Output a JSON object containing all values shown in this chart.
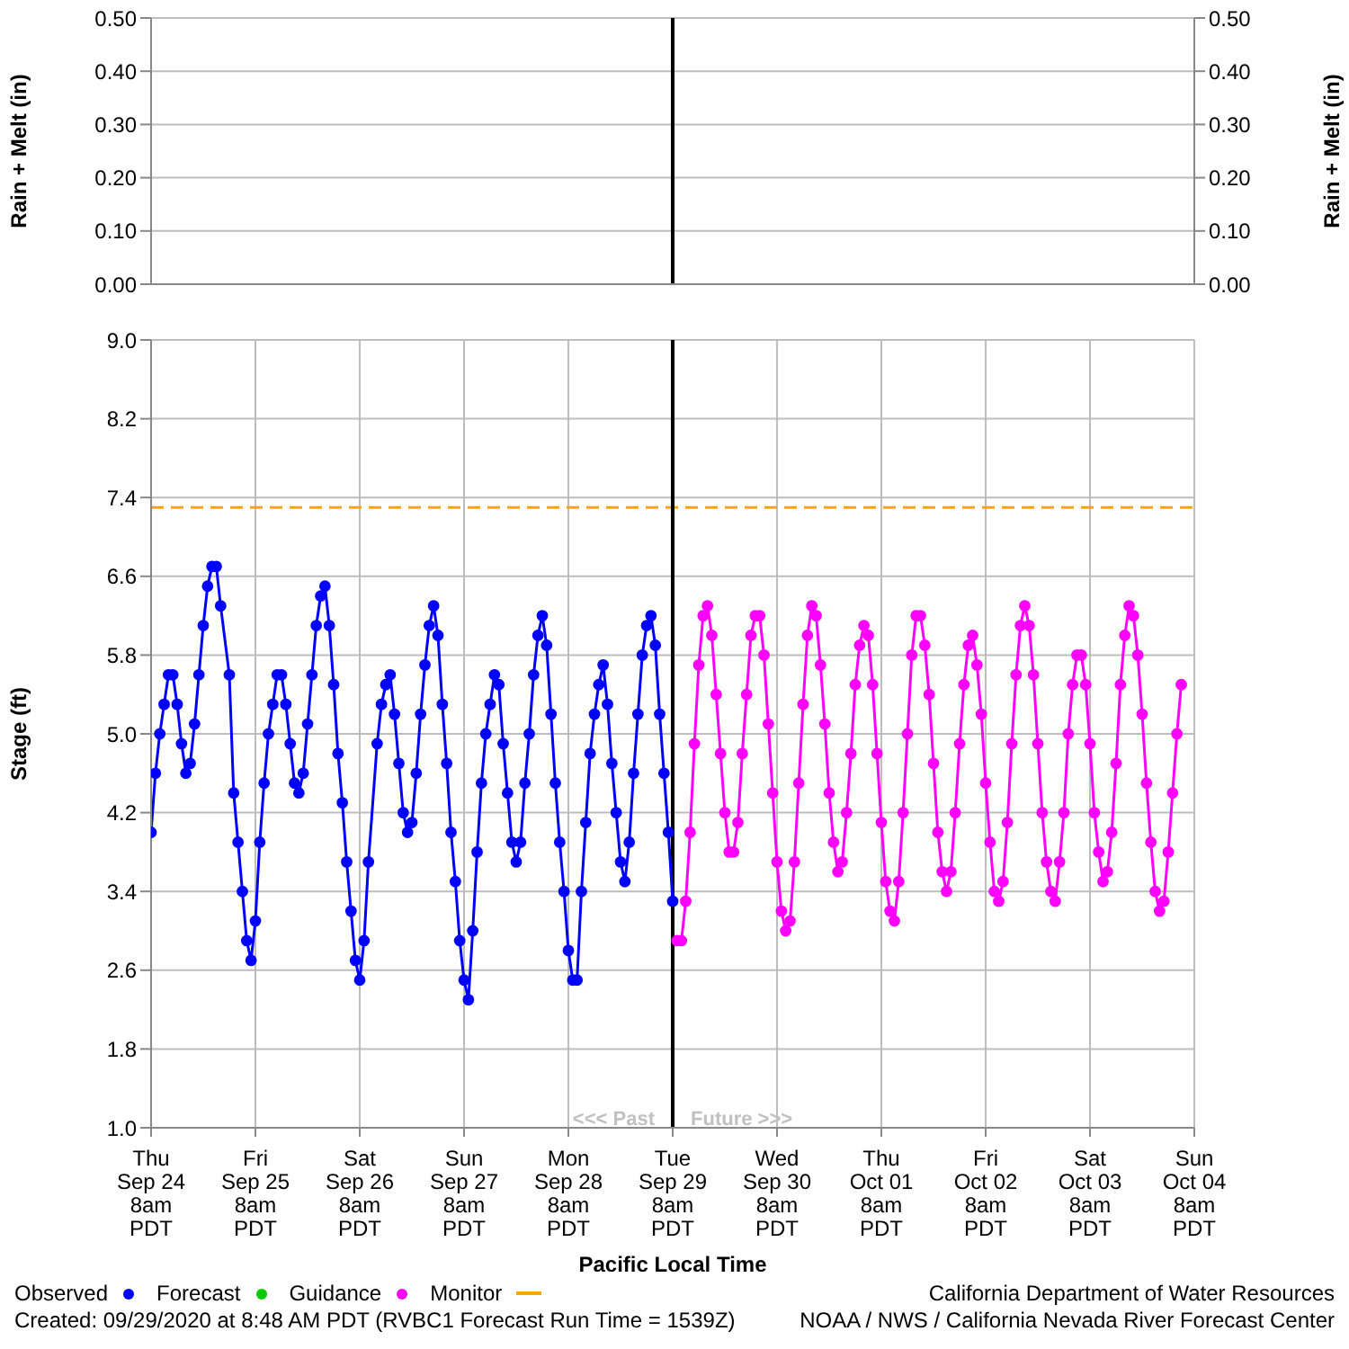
{
  "chart_data": [
    {
      "type": "bar",
      "ylabel": "Rain + Melt (in)",
      "y2label": "Rain + Melt (in)",
      "xlim": [
        "2020-09-24T08:00",
        "2020-10-04T08:00"
      ],
      "xticks": [
        "2020-09-24T08:00",
        "2020-09-25T08:00",
        "2020-09-26T08:00",
        "2020-09-27T08:00",
        "2020-09-28T08:00",
        "2020-09-29T08:00",
        "2020-09-30T08:00",
        "2020-10-01T08:00",
        "2020-10-02T08:00",
        "2020-10-03T08:00",
        "2020-10-04T08:00"
      ],
      "ylim": [
        0,
        0.5
      ],
      "yticks": [
        {
          "value": 0,
          "label": "0.00"
        },
        {
          "value": 0.1,
          "label": "0.10"
        },
        {
          "value": 0.2,
          "label": "0.20"
        },
        {
          "value": 0.3,
          "label": "0.30"
        },
        {
          "value": 0.4,
          "label": "0.40"
        },
        {
          "value": 0.5,
          "label": "0.50"
        }
      ],
      "y2lim": [
        0,
        0.5
      ],
      "y2ticks": [
        {
          "value": 0,
          "label": "0.00"
        },
        {
          "value": 0.1,
          "label": "0.10"
        },
        {
          "value": 0.2,
          "label": "0.20"
        },
        {
          "value": 0.3,
          "label": "0.30"
        },
        {
          "value": 0.4,
          "label": "0.40"
        },
        {
          "value": 0.5,
          "label": "0.50"
        }
      ],
      "ref_lines": [
        {
          "axis": "x",
          "value": "2020-09-29T08:00",
          "color": "#000000"
        }
      ],
      "grid": true,
      "tick_labels": "y"
    },
    {
      "type": "line",
      "ylabel": "Stage (ft)",
      "xlabel": "Pacific Local Time",
      "xlim": [
        "2020-09-24T08:00",
        "2020-10-04T08:00"
      ],
      "xticks": [
        {
          "value": "2020-09-24T08:00",
          "label": "Thu\nSep 24\n8am\nPDT"
        },
        {
          "value": "2020-09-25T08:00",
          "label": "Fri\nSep 25\n8am\nPDT"
        },
        {
          "value": "2020-09-26T08:00",
          "label": "Sat\nSep 26\n8am\nPDT"
        },
        {
          "value": "2020-09-27T08:00",
          "label": "Sun\nSep 27\n8am\nPDT"
        },
        {
          "value": "2020-09-28T08:00",
          "label": "Mon\nSep 28\n8am\nPDT"
        },
        {
          "value": "2020-09-29T08:00",
          "label": "Tue\nSep 29\n8am\nPDT"
        },
        {
          "value": "2020-09-30T08:00",
          "label": "Wed\nSep 30\n8am\nPDT"
        },
        {
          "value": "2020-10-01T08:00",
          "label": "Thu\nOct 01\n8am\nPDT"
        },
        {
          "value": "2020-10-02T08:00",
          "label": "Fri\nOct 02\n8am\nPDT"
        },
        {
          "value": "2020-10-03T08:00",
          "label": "Sat\nOct 03\n8am\nPDT"
        },
        {
          "value": "2020-10-04T08:00",
          "label": "Sun\nOct 04\n8am\nPDT"
        }
      ],
      "ylim": [
        1,
        9
      ],
      "yticks": [
        {
          "value": 1,
          "label": "1.0"
        },
        {
          "value": 1.8,
          "label": "1.8"
        },
        {
          "value": 2.6,
          "label": "2.6"
        },
        {
          "value": 3.4,
          "label": "3.4"
        },
        {
          "value": 4.2,
          "label": "4.2"
        },
        {
          "value": 5,
          "label": "5.0"
        },
        {
          "value": 5.8,
          "label": "5.8"
        },
        {
          "value": 6.6,
          "label": "6.6"
        },
        {
          "value": 7.4,
          "label": "7.4"
        },
        {
          "value": 8.2,
          "label": "8.2"
        },
        {
          "value": 9,
          "label": "9.0"
        }
      ],
      "series": [
        {
          "name": "Observed",
          "color": "#0000ff",
          "x": [
            "2020-09-24T08:00",
            "2020-09-24T09:00",
            "2020-09-24T10:00",
            "2020-09-24T11:00",
            "2020-09-24T12:00",
            "2020-09-24T13:00",
            "2020-09-24T14:00",
            "2020-09-24T15:00",
            "2020-09-24T16:00",
            "2020-09-24T17:00",
            "2020-09-24T18:00",
            "2020-09-24T19:00",
            "2020-09-24T20:00",
            "2020-09-24T21:00",
            "2020-09-24T22:00",
            "2020-09-24T23:00",
            "2020-09-25T00:00",
            "2020-09-25T02:00",
            "2020-09-25T03:00",
            "2020-09-25T04:00",
            "2020-09-25T05:00",
            "2020-09-25T06:00",
            "2020-09-25T07:00",
            "2020-09-25T08:00",
            "2020-09-25T09:00",
            "2020-09-25T10:00",
            "2020-09-25T11:00",
            "2020-09-25T12:00",
            "2020-09-25T13:00",
            "2020-09-25T14:00",
            "2020-09-25T15:00",
            "2020-09-25T16:00",
            "2020-09-25T17:00",
            "2020-09-25T18:00",
            "2020-09-25T19:00",
            "2020-09-25T20:00",
            "2020-09-25T21:00",
            "2020-09-25T22:00",
            "2020-09-25T23:00",
            "2020-09-26T00:00",
            "2020-09-26T01:00",
            "2020-09-26T02:00",
            "2020-09-26T03:00",
            "2020-09-26T04:00",
            "2020-09-26T05:00",
            "2020-09-26T06:00",
            "2020-09-26T07:00",
            "2020-09-26T08:00",
            "2020-09-26T09:00",
            "2020-09-26T10:00",
            "2020-09-26T12:00",
            "2020-09-26T13:00",
            "2020-09-26T14:00",
            "2020-09-26T15:00",
            "2020-09-26T16:00",
            "2020-09-26T17:00",
            "2020-09-26T18:00",
            "2020-09-26T19:00",
            "2020-09-26T20:00",
            "2020-09-26T21:00",
            "2020-09-26T22:00",
            "2020-09-26T23:00",
            "2020-09-27T00:00",
            "2020-09-27T01:00",
            "2020-09-27T02:00",
            "2020-09-27T03:00",
            "2020-09-27T04:00",
            "2020-09-27T05:00",
            "2020-09-27T06:00",
            "2020-09-27T07:00",
            "2020-09-27T08:00",
            "2020-09-27T09:00",
            "2020-09-27T10:00",
            "2020-09-27T11:00",
            "2020-09-27T12:00",
            "2020-09-27T13:00",
            "2020-09-27T14:00",
            "2020-09-27T15:00",
            "2020-09-27T16:00",
            "2020-09-27T17:00",
            "2020-09-27T18:00",
            "2020-09-27T19:00",
            "2020-09-27T20:00",
            "2020-09-27T21:00",
            "2020-09-27T22:00",
            "2020-09-27T23:00",
            "2020-09-28T00:00",
            "2020-09-28T01:00",
            "2020-09-28T02:00",
            "2020-09-28T03:00",
            "2020-09-28T04:00",
            "2020-09-28T05:00",
            "2020-09-28T06:00",
            "2020-09-28T07:00",
            "2020-09-28T08:00",
            "2020-09-28T09:00",
            "2020-09-28T10:00",
            "2020-09-28T11:00",
            "2020-09-28T12:00",
            "2020-09-28T13:00",
            "2020-09-28T14:00",
            "2020-09-28T15:00",
            "2020-09-28T16:00",
            "2020-09-28T17:00",
            "2020-09-28T18:00",
            "2020-09-28T19:00",
            "2020-09-28T20:00",
            "2020-09-28T21:00",
            "2020-09-28T22:00",
            "2020-09-28T23:00",
            "2020-09-29T00:00",
            "2020-09-29T01:00",
            "2020-09-29T02:00",
            "2020-09-29T03:00",
            "2020-09-29T04:00",
            "2020-09-29T05:00",
            "2020-09-29T06:00",
            "2020-09-29T07:00",
            "2020-09-29T08:00"
          ],
          "values": [
            4.0,
            4.6,
            5.0,
            5.3,
            5.6,
            5.6,
            5.3,
            4.9,
            4.6,
            4.7,
            5.1,
            5.6,
            6.1,
            6.5,
            6.7,
            6.7,
            6.3,
            5.6,
            4.4,
            3.9,
            3.4,
            2.9,
            2.7,
            3.1,
            3.9,
            4.5,
            5.0,
            5.3,
            5.6,
            5.6,
            5.3,
            4.9,
            4.5,
            4.4,
            4.6,
            5.1,
            5.6,
            6.1,
            6.4,
            6.5,
            6.1,
            5.5,
            4.8,
            4.3,
            3.7,
            3.2,
            2.7,
            2.5,
            2.9,
            3.7,
            4.9,
            5.3,
            5.5,
            5.6,
            5.2,
            4.7,
            4.2,
            4.0,
            4.1,
            4.6,
            5.2,
            5.7,
            6.1,
            6.3,
            6.0,
            5.3,
            4.7,
            4.0,
            3.5,
            2.9,
            2.5,
            2.3,
            3.0,
            3.8,
            4.5,
            5.0,
            5.3,
            5.6,
            5.5,
            4.9,
            4.4,
            3.9,
            3.7,
            3.9,
            4.5,
            5.0,
            5.6,
            6.0,
            6.2,
            5.9,
            5.2,
            4.5,
            3.9,
            3.4,
            2.8,
            2.5,
            2.5,
            3.4,
            4.1,
            4.8,
            5.2,
            5.5,
            5.7,
            5.3,
            4.7,
            4.2,
            3.7,
            3.5,
            3.9,
            4.6,
            5.2,
            5.8,
            6.1,
            6.2,
            5.9,
            5.2,
            4.6,
            4.0,
            3.3
          ]
        },
        {
          "name": "Forecast",
          "color": "#00cc00"
        },
        {
          "name": "Guidance",
          "color": "#ff00ff",
          "x": [
            "2020-09-29T09:00",
            "2020-09-29T10:00",
            "2020-09-29T11:00",
            "2020-09-29T12:00",
            "2020-09-29T13:00",
            "2020-09-29T14:00",
            "2020-09-29T15:00",
            "2020-09-29T16:00",
            "2020-09-29T17:00",
            "2020-09-29T18:00",
            "2020-09-29T19:00",
            "2020-09-29T20:00",
            "2020-09-29T21:00",
            "2020-09-29T22:00",
            "2020-09-29T23:00",
            "2020-09-30T00:00",
            "2020-09-30T01:00",
            "2020-09-30T02:00",
            "2020-09-30T03:00",
            "2020-09-30T04:00",
            "2020-09-30T05:00",
            "2020-09-30T06:00",
            "2020-09-30T07:00",
            "2020-09-30T08:00",
            "2020-09-30T09:00",
            "2020-09-30T10:00",
            "2020-09-30T11:00",
            "2020-09-30T12:00",
            "2020-09-30T13:00",
            "2020-09-30T14:00",
            "2020-09-30T15:00",
            "2020-09-30T16:00",
            "2020-09-30T17:00",
            "2020-09-30T18:00",
            "2020-09-30T19:00",
            "2020-09-30T20:00",
            "2020-09-30T21:00",
            "2020-09-30T22:00",
            "2020-09-30T23:00",
            "2020-10-01T00:00",
            "2020-10-01T01:00",
            "2020-10-01T02:00",
            "2020-10-01T03:00",
            "2020-10-01T04:00",
            "2020-10-01T05:00",
            "2020-10-01T06:00",
            "2020-10-01T07:00",
            "2020-10-01T08:00",
            "2020-10-01T09:00",
            "2020-10-01T10:00",
            "2020-10-01T11:00",
            "2020-10-01T12:00",
            "2020-10-01T13:00",
            "2020-10-01T14:00",
            "2020-10-01T15:00",
            "2020-10-01T16:00",
            "2020-10-01T17:00",
            "2020-10-01T18:00",
            "2020-10-01T19:00",
            "2020-10-01T20:00",
            "2020-10-01T21:00",
            "2020-10-01T22:00",
            "2020-10-01T23:00",
            "2020-10-02T00:00",
            "2020-10-02T01:00",
            "2020-10-02T02:00",
            "2020-10-02T03:00",
            "2020-10-02T04:00",
            "2020-10-02T05:00",
            "2020-10-02T06:00",
            "2020-10-02T07:00",
            "2020-10-02T08:00",
            "2020-10-02T09:00",
            "2020-10-02T10:00",
            "2020-10-02T11:00",
            "2020-10-02T12:00",
            "2020-10-02T13:00",
            "2020-10-02T14:00",
            "2020-10-02T15:00",
            "2020-10-02T16:00",
            "2020-10-02T17:00",
            "2020-10-02T18:00",
            "2020-10-02T19:00",
            "2020-10-02T20:00",
            "2020-10-02T21:00",
            "2020-10-02T22:00",
            "2020-10-02T23:00",
            "2020-10-03T00:00",
            "2020-10-03T01:00",
            "2020-10-03T02:00",
            "2020-10-03T03:00",
            "2020-10-03T04:00",
            "2020-10-03T05:00",
            "2020-10-03T06:00",
            "2020-10-03T07:00",
            "2020-10-03T08:00",
            "2020-10-03T09:00",
            "2020-10-03T10:00",
            "2020-10-03T11:00",
            "2020-10-03T12:00",
            "2020-10-03T13:00",
            "2020-10-03T14:00",
            "2020-10-03T15:00",
            "2020-10-03T16:00",
            "2020-10-03T17:00",
            "2020-10-03T18:00",
            "2020-10-03T19:00",
            "2020-10-03T20:00",
            "2020-10-03T21:00",
            "2020-10-03T22:00",
            "2020-10-03T23:00",
            "2020-10-04T00:00",
            "2020-10-04T01:00",
            "2020-10-04T02:00",
            "2020-10-04T03:00",
            "2020-10-04T04:00",
            "2020-10-04T05:00"
          ],
          "values": [
            2.9,
            2.9,
            3.3,
            4.0,
            4.9,
            5.7,
            6.2,
            6.3,
            6.0,
            5.4,
            4.8,
            4.2,
            3.8,
            3.8,
            4.1,
            4.8,
            5.4,
            6.0,
            6.2,
            6.2,
            5.8,
            5.1,
            4.4,
            3.7,
            3.2,
            3.0,
            3.1,
            3.7,
            4.5,
            5.3,
            6.0,
            6.3,
            6.2,
            5.7,
            5.1,
            4.4,
            3.9,
            3.6,
            3.7,
            4.2,
            4.8,
            5.5,
            5.9,
            6.1,
            6.0,
            5.5,
            4.8,
            4.1,
            3.5,
            3.2,
            3.1,
            3.5,
            4.2,
            5.0,
            5.8,
            6.2,
            6.2,
            5.9,
            5.4,
            4.7,
            4.0,
            3.6,
            3.4,
            3.6,
            4.2,
            4.9,
            5.5,
            5.9,
            6.0,
            5.7,
            5.2,
            4.5,
            3.9,
            3.4,
            3.3,
            3.5,
            4.1,
            4.9,
            5.6,
            6.1,
            6.3,
            6.1,
            5.6,
            4.9,
            4.2,
            3.7,
            3.4,
            3.3,
            3.7,
            4.2,
            5.0,
            5.5,
            5.8,
            5.8,
            5.5,
            4.9,
            4.2,
            3.8,
            3.5,
            3.6,
            4.0,
            4.7,
            5.5,
            6.0,
            6.3,
            6.2,
            5.8,
            5.2,
            4.5,
            3.9,
            3.4,
            3.2,
            3.3,
            3.8,
            4.4,
            5.0,
            5.5
          ]
        }
      ],
      "ref_lines": [
        {
          "axis": "y",
          "value": 7.3,
          "label": "Monitor",
          "color": "#ffa500",
          "line_style": "dashed"
        },
        {
          "axis": "x",
          "value": "2020-09-29T08:00",
          "color": "#000000"
        }
      ],
      "annotations": [
        {
          "text": "<<< Past",
          "x": "2020-09-29T08:00",
          "y": 1.1
        },
        {
          "text": "Future >>>",
          "x": "2020-09-29T08:00",
          "y": 1.1
        },
        "Created: 09/29/2020 at 8:48 AM PDT  (RVBC1 Forecast Run Time = 1539Z)",
        "California Department of Water Resources",
        "NOAA / NWS / California Nevada River Forecast Center"
      ],
      "marker": "circle",
      "line_style": "solid",
      "grid": true,
      "legend": "bottom left"
    }
  ]
}
